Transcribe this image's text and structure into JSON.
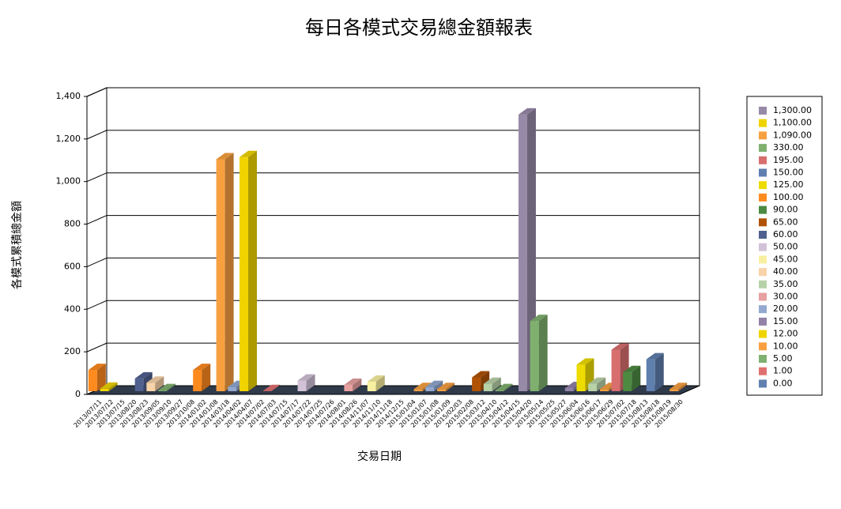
{
  "chart_data": {
    "type": "bar3d",
    "title": "每日各模式交易總金額報表",
    "x_label": "交易日期",
    "y_label": "各模式累積總金額",
    "categories": [
      "2013/07/11",
      "2013/07/12",
      "2013/07/15",
      "2013/08/20",
      "2013/08/23",
      "2013/09/05",
      "2013/09/10",
      "2013/09/27",
      "2013/10/08",
      "2014/01/02",
      "2014/01/08",
      "2014/03/18",
      "2014/04/02",
      "2014/04/07",
      "2014/07/02",
      "2014/07/03",
      "2014/07/15",
      "2014/07/17",
      "2014/07/22",
      "2014/07/25",
      "2014/07/26",
      "2014/08/01",
      "2014/08/26",
      "2014/11/07",
      "2014/11/10",
      "2014/11/18",
      "2014/12/15",
      "2015/01/04",
      "2015/01/07",
      "2015/01/08",
      "2015/01/09",
      "2015/02/03",
      "2015/02/08",
      "2015/03/12",
      "2015/04/10",
      "2015/04/12",
      "2015/04/15",
      "2015/04/20",
      "2015/05/14",
      "2015/05/25",
      "2015/05/27",
      "2015/06/04",
      "2015/06/16",
      "2015/06/17",
      "2015/06/29",
      "2015/07/02",
      "2015/07/18",
      "2015/08/13",
      "2015/08/18",
      "2015/08/19",
      "2015/08/30"
    ],
    "values": [
      100,
      12,
      0,
      0,
      60,
      40,
      5,
      0,
      0,
      100,
      0,
      1090,
      20,
      1100,
      0,
      1,
      0,
      0,
      50,
      0,
      0,
      0,
      30,
      0,
      45,
      0,
      0,
      0,
      10,
      20,
      10,
      0,
      0,
      65,
      35,
      5,
      0,
      1300,
      330,
      0,
      0,
      15,
      125,
      35,
      10,
      195,
      90,
      0,
      150,
      0,
      10
    ],
    "legend": [
      {
        "value": 1300,
        "label": "1,300.00",
        "color": "#978aa8"
      },
      {
        "value": 1100,
        "label": "1,100.00",
        "color": "#f0d400"
      },
      {
        "value": 1090,
        "label": "1,090.00",
        "color": "#f8a040"
      },
      {
        "value": 330,
        "label": "330.00",
        "color": "#7fb06e"
      },
      {
        "value": 195,
        "label": "195.00",
        "color": "#d86e6e"
      },
      {
        "value": 150,
        "label": "150.00",
        "color": "#5f7fae"
      },
      {
        "value": 125,
        "label": "125.00",
        "color": "#eedc00"
      },
      {
        "value": 100,
        "label": "100.00",
        "color": "#ff8a1e"
      },
      {
        "value": 90,
        "label": "90.00",
        "color": "#4c8a42"
      },
      {
        "value": 65,
        "label": "65.00",
        "color": "#b05206"
      },
      {
        "value": 60,
        "label": "60.00",
        "color": "#4f5f8e"
      },
      {
        "value": 50,
        "label": "50.00",
        "color": "#d2c2d8"
      },
      {
        "value": 45,
        "label": "45.00",
        "color": "#f8f0a0"
      },
      {
        "value": 40,
        "label": "40.00",
        "color": "#f8d2a8"
      },
      {
        "value": 35,
        "label": "35.00",
        "color": "#b8d2a8"
      },
      {
        "value": 30,
        "label": "30.00",
        "color": "#e8a0a0"
      },
      {
        "value": 20,
        "label": "20.00",
        "color": "#92a8d0"
      },
      {
        "value": 15,
        "label": "15.00",
        "color": "#9282a8"
      },
      {
        "value": 12,
        "label": "12.00",
        "color": "#f0d400"
      },
      {
        "value": 10,
        "label": "10.00",
        "color": "#f8a040"
      },
      {
        "value": 5,
        "label": "5.00",
        "color": "#80b070"
      },
      {
        "value": 1,
        "label": "1.00",
        "color": "#e07070"
      },
      {
        "value": 0,
        "label": "0.00",
        "color": "#6080b0"
      }
    ],
    "ylim": [
      0,
      1400
    ],
    "yticks": [
      0,
      200,
      400,
      600,
      800,
      {
        "value": 1000,
        "label": "1,000"
      },
      {
        "value": 1200,
        "label": "1,200"
      },
      {
        "value": 1400,
        "label": "1,400"
      }
    ],
    "grid": true
  }
}
